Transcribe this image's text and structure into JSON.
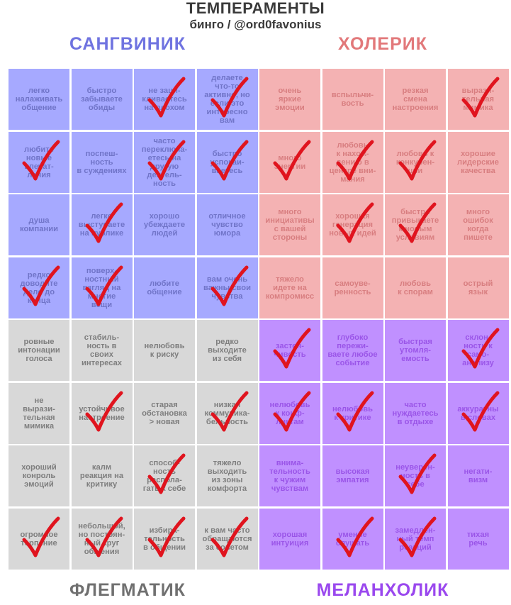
{
  "header": {
    "title": "ТЕМПЕРАМЕНТЫ",
    "subtitle": "бинго / @ord0favonius"
  },
  "colors": {
    "check": "#e0141e"
  },
  "quadrants": [
    {
      "label": "САНГВИНИК",
      "label_color": "#6f73e0",
      "cell_bg": "#a6a9ff",
      "cell_text": "#7074c8",
      "cells": [
        {
          "text": "легко\nналаживать\nобщение",
          "checked": false
        },
        {
          "text": "быстро\nзабываете\nобиды",
          "checked": false
        },
        {
          "text": "не заци-\nкливаетесь\nна плохом",
          "checked": true
        },
        {
          "text": "делаете\nчто-то\nактивно, но\nесли это\nинтересно\nвам",
          "checked": true
        },
        {
          "text": "любите\nновые\nвпечат-\nления",
          "checked": true
        },
        {
          "text": "поспеш-\nность\nв суждениях",
          "checked": false
        },
        {
          "text": "часто\nпереключа-\nетесь на\nдругую\nдеятель-\nность",
          "checked": true
        },
        {
          "text": "быстро\nуспокаи-\nваетесь",
          "checked": true
        },
        {
          "text": "душа\nкомпании",
          "checked": false
        },
        {
          "text": "легко\nвыступаете\nна публике",
          "checked": true
        },
        {
          "text": "хорошо\nубеждаете\nлюдей",
          "checked": false
        },
        {
          "text": "отличное\nчувство\nюмора",
          "checked": false
        },
        {
          "text": "редко\nдоводите\nдело до\nконца",
          "checked": true
        },
        {
          "text": "поверх-\nностный\nвзгляд на\nмногие\nвещи",
          "checked": true
        },
        {
          "text": "любите\nобщение",
          "checked": false
        },
        {
          "text": "вам очень\nважны свои\nчувства",
          "checked": true
        }
      ]
    },
    {
      "label": "ХОЛЕРИК",
      "label_color": "#e2787a",
      "cell_bg": "#f4b2b3",
      "cell_text": "#d87e80",
      "cells": [
        {
          "text": "очень\nяркие\nэмоции",
          "checked": false
        },
        {
          "text": "вспыльчи-\nвость",
          "checked": false
        },
        {
          "text": "резкая\nсмена\nнастроения",
          "checked": false
        },
        {
          "text": "вырази-\nтельная\nмимика",
          "checked": true
        },
        {
          "text": "много\nэнергии",
          "checked": true
        },
        {
          "text": "любовь\nк нахож-\nдению в\nцентре вни-\nмания",
          "checked": true
        },
        {
          "text": "любовь к\nконкурен-\nции",
          "checked": true
        },
        {
          "text": "хорошие\nлидерские\nкачества",
          "checked": false
        },
        {
          "text": "много\nинициативы\nс вашей\nстороны",
          "checked": false
        },
        {
          "text": "хорошая\nгенерация\nновых идей",
          "checked": true
        },
        {
          "text": "быстро\nпривыкаете\nк новым\nусловиям",
          "checked": true
        },
        {
          "text": "много\nошибок\nкогда\nпишете",
          "checked": false
        },
        {
          "text": "тяжело\nидете на\nкомпромисс",
          "checked": false
        },
        {
          "text": "самоуве-\nренность",
          "checked": false
        },
        {
          "text": "любовь\nк спорам",
          "checked": false
        },
        {
          "text": "острый\nязык",
          "checked": false
        }
      ]
    },
    {
      "label": "ФЛЕГМАТИК",
      "label_color": "#707070",
      "cell_bg": "#d8d8d8",
      "cell_text": "#7e7e7e",
      "cells": [
        {
          "text": "ровные\nинтонации\nголоса",
          "checked": false
        },
        {
          "text": "стабиль-\nность в\nсвоих\nинтересах",
          "checked": false
        },
        {
          "text": "нелюбовь\nк риску",
          "checked": false
        },
        {
          "text": "редко\nвыходите\nиз себя",
          "checked": false
        },
        {
          "text": "не\nвырази-\nтельная\nмимика",
          "checked": false
        },
        {
          "text": "устойчивое\nнастроение",
          "checked": true
        },
        {
          "text": "старая\nобстановка\n> новая",
          "checked": false
        },
        {
          "text": "низкая\nкоммуника-\nбельность",
          "checked": true
        },
        {
          "text": "хороший\nконроль\nэмоций",
          "checked": false
        },
        {
          "text": "калм\nреакция на\nкритику",
          "checked": false
        },
        {
          "text": "способ-\nность\nраспола-\nгать к себе",
          "checked": true
        },
        {
          "text": "тяжело\nвыходить\nиз зоны\nкомфорта",
          "checked": false
        },
        {
          "text": "огромное\nтерпение",
          "checked": true
        },
        {
          "text": "небольшой,\nно постоян-\nный круг\nобщения",
          "checked": true
        },
        {
          "text": "избира-\nтельность\nв общении",
          "checked": true
        },
        {
          "text": "к вам часто\nобращаются\nза советом",
          "checked": true
        }
      ]
    },
    {
      "label": "МЕЛАНХОЛИК",
      "label_color": "#9a48ee",
      "cell_bg": "#c090ff",
      "cell_text": "#9a55e8",
      "cells": [
        {
          "text": "застен-\nчивость",
          "checked": true
        },
        {
          "text": "глубоко\nпережи-\nваете любое\nсобытие",
          "checked": false
        },
        {
          "text": "быстрая\nутомля-\nемость",
          "checked": false
        },
        {
          "text": "склон-\nность к\nсамо-\nанализу",
          "checked": true
        },
        {
          "text": "нелюбовь\nк конф-\nликтам",
          "checked": true
        },
        {
          "text": "нелюбовь\nк критике",
          "checked": true
        },
        {
          "text": "часто\nнуждаетесь\nв отдыхе",
          "checked": false
        },
        {
          "text": "аккуратны\nв словах",
          "checked": true
        },
        {
          "text": "внима-\nтельность\nк чужим\nчувствам",
          "checked": false
        },
        {
          "text": "высокая\nэмпатия",
          "checked": false
        },
        {
          "text": "неуверен-\nность в\nсебе",
          "checked": true
        },
        {
          "text": "негати-\nвизм",
          "checked": false
        },
        {
          "text": "хорошая\nинтуиция",
          "checked": false
        },
        {
          "text": "умение\nслушать",
          "checked": true
        },
        {
          "text": "замедлен-\nный темп\nреакций",
          "checked": true
        },
        {
          "text": "тихая\nречь",
          "checked": false
        }
      ]
    }
  ]
}
